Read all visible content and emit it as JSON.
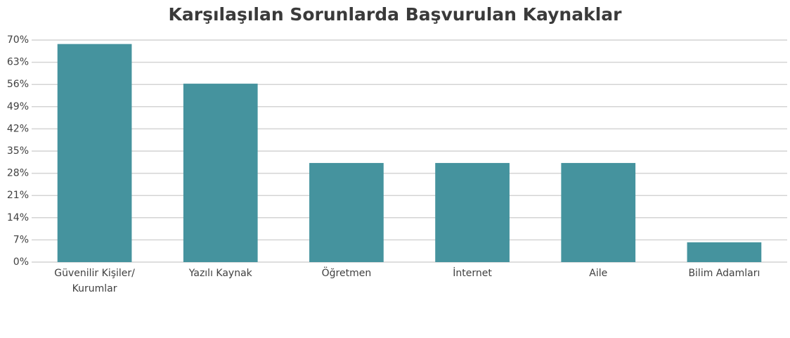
{
  "chart_data": {
    "type": "bar",
    "title": "Karşılaşılan Sorunlarda Başvurulan Kaynaklar",
    "categories": [
      "Güvenilir Kişiler/ Kurumlar",
      "Yazılı Kaynak",
      "Öğretmen",
      "İnternet",
      "Aile",
      "Bilim Adamları"
    ],
    "values": [
      68.75,
      56.25,
      31.25,
      31.25,
      31.25,
      6.25
    ],
    "color": "#45939e",
    "ylim": [
      0,
      70
    ],
    "yticks": [
      {
        "value": 0,
        "label": "0%"
      },
      {
        "value": 7,
        "label": "7%"
      },
      {
        "value": 14,
        "label": "14%"
      },
      {
        "value": 21,
        "label": "21%"
      },
      {
        "value": 28,
        "label": "28%"
      },
      {
        "value": 35,
        "label": "35%"
      },
      {
        "value": 42,
        "label": "42%"
      },
      {
        "value": 49,
        "label": "49%"
      },
      {
        "value": 56,
        "label": "56%"
      },
      {
        "value": 63,
        "label": "63%"
      },
      {
        "value": 70,
        "label": "70%"
      }
    ],
    "grid": true
  }
}
